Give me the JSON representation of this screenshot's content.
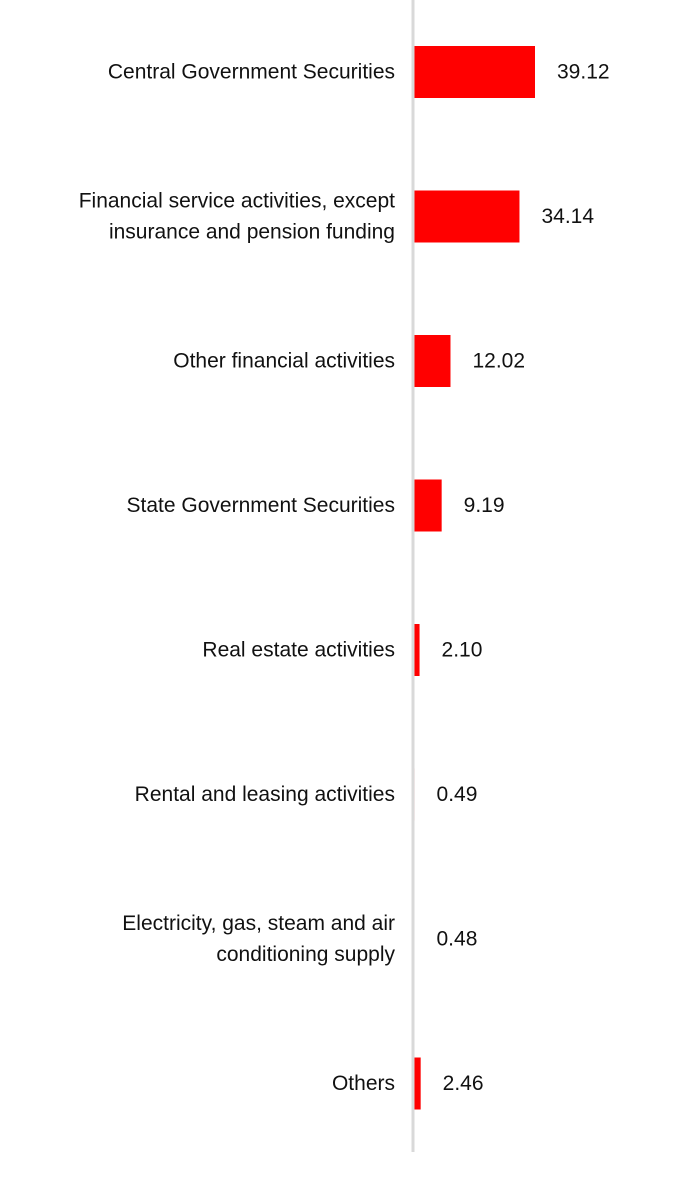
{
  "chart_data": {
    "type": "bar",
    "orientation": "horizontal",
    "categories": [
      "Central Government Securities",
      "Financial service activities, except insurance and pension funding",
      "Other financial activities",
      "State Government Securities",
      "Real estate activities",
      "Rental and leasing activities",
      "Electricity, gas, steam and air conditioning supply",
      "Others"
    ],
    "values": [
      39.12,
      34.14,
      12.02,
      9.19,
      2.1,
      0.49,
      0.48,
      2.46
    ],
    "value_labels": [
      "39.12",
      "34.14",
      "12.02",
      "9.19",
      "2.10",
      "0.49",
      "0.48",
      "2.46"
    ],
    "title": "",
    "xlabel": "",
    "ylabel": "",
    "xlim": [
      0,
      39.12
    ],
    "grid": false,
    "legend": "none",
    "colors": {
      "bar": "#ff0000",
      "axis": "#d9d9d9",
      "text": "#111111"
    }
  }
}
